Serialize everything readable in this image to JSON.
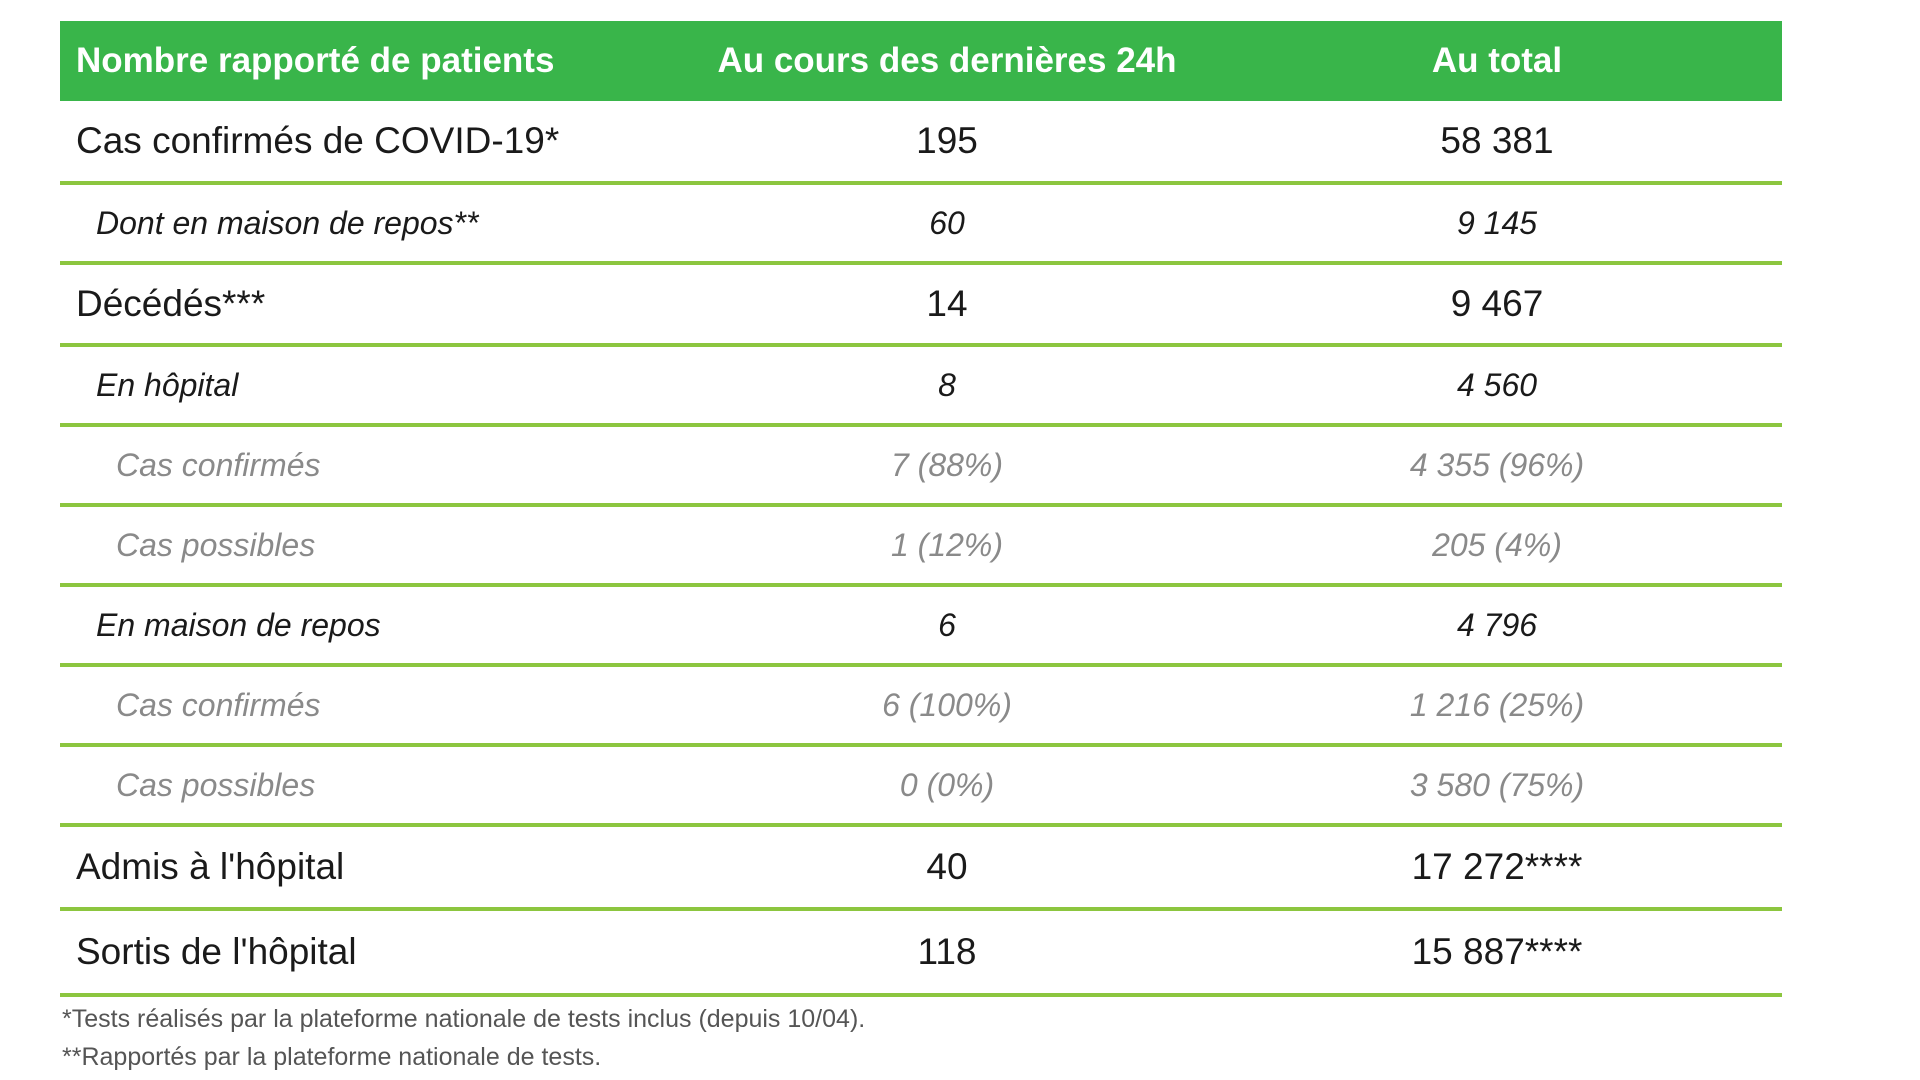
{
  "table": {
    "headers": [
      "Nombre rapporté de patients",
      "Au cours des dernières 24h",
      "Au total"
    ],
    "rows": [
      {
        "label": "Cas confirmés de COVID-19*",
        "last24h": "195",
        "total": "58 381",
        "level": 0
      },
      {
        "label": "Dont en maison de repos**",
        "last24h": "60",
        "total": "9 145",
        "level": 1
      },
      {
        "label": "Décédés***",
        "last24h": "14",
        "total": "9 467",
        "level": 0
      },
      {
        "label": "En hôpital",
        "last24h": "8",
        "total": "4 560",
        "level": 1
      },
      {
        "label": "Cas confirmés",
        "last24h": "7 (88%)",
        "total": "4 355 (96%)",
        "level": 2
      },
      {
        "label": "Cas possibles",
        "last24h": "1 (12%)",
        "total": "205 (4%)",
        "level": 2
      },
      {
        "label": "En maison de repos",
        "last24h": "6",
        "total": "4 796",
        "level": 1
      },
      {
        "label": "Cas confirmés",
        "last24h": "6 (100%)",
        "total": "1 216 (25%)",
        "level": 2
      },
      {
        "label": "Cas possibles",
        "last24h": "0 (0%)",
        "total": "3 580 (75%)",
        "level": 2
      },
      {
        "label": "Admis à l'hôpital",
        "last24h": "40",
        "total": "17 272****",
        "level": 0
      },
      {
        "label": "Sortis de l'hôpital",
        "last24h": "118",
        "total": "15 887****",
        "level": 0
      }
    ]
  },
  "footnotes": [
    "*Tests réalisés par la plateforme nationale de tests inclus (depuis 10/04).",
    "**Rapportés par la plateforme nationale de tests."
  ],
  "colors": {
    "header_bg": "#39b54a",
    "row_border": "#8cc63f",
    "subtext": "#8a8a8a"
  }
}
